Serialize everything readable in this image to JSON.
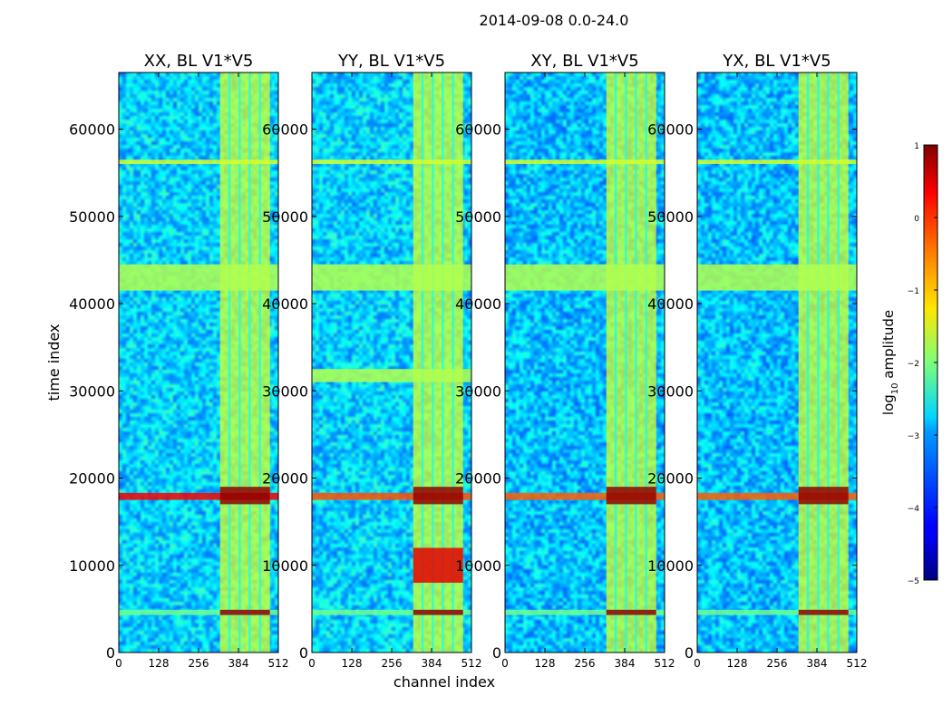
{
  "figure": {
    "suptitle": "2014-09-08 0.0-24.0",
    "shared_ylabel": "time index",
    "shared_xlabel": "channel index"
  },
  "chart_data": [
    {
      "type": "heatmap",
      "title": "XX, BL V1*V5",
      "xlim": [
        0,
        512
      ],
      "ylim": [
        0,
        66500
      ],
      "xticks": [
        0,
        128,
        256,
        384,
        512
      ],
      "yticks": [
        0,
        10000,
        20000,
        30000,
        40000,
        50000,
        60000
      ],
      "colormap": "jet",
      "value_label": "log10 amplitude",
      "background_level": -3.0,
      "high_columns": [
        [
          325,
          485
        ]
      ],
      "column_gaps": [
        355,
        388,
        420,
        453
      ],
      "rfi_rows": [
        {
          "y0": 4300,
          "y1": 4900,
          "x0": 0,
          "x1": 512,
          "level": -2.1
        },
        {
          "y0": 4300,
          "y1": 4900,
          "x0": 325,
          "x1": 485,
          "level": 0.9
        },
        {
          "y0": 17500,
          "y1": 18300,
          "x0": 0,
          "x1": 512,
          "level": 0.3
        },
        {
          "y0": 17000,
          "y1": 19000,
          "x0": 325,
          "x1": 485,
          "level": 0.9
        },
        {
          "y0": 41500,
          "y1": 44500,
          "x0": 0,
          "x1": 512,
          "level": -1.7
        },
        {
          "y0": 56000,
          "y1": 56500,
          "x0": 0,
          "x1": 512,
          "level": -1.5
        }
      ]
    },
    {
      "type": "heatmap",
      "title": "YY, BL V1*V5",
      "xlim": [
        0,
        512
      ],
      "ylim": [
        0,
        66500
      ],
      "xticks": [
        0,
        128,
        256,
        384,
        512
      ],
      "yticks": [
        0,
        10000,
        20000,
        30000,
        40000,
        50000,
        60000
      ],
      "colormap": "jet",
      "value_label": "log10 amplitude",
      "background_level": -3.0,
      "high_columns": [
        [
          325,
          485
        ]
      ],
      "column_gaps": [
        355,
        388,
        420,
        453
      ],
      "rfi_rows": [
        {
          "y0": 4300,
          "y1": 4900,
          "x0": 0,
          "x1": 512,
          "level": -2.1
        },
        {
          "y0": 4300,
          "y1": 4900,
          "x0": 325,
          "x1": 485,
          "level": 0.9
        },
        {
          "y0": 17500,
          "y1": 18300,
          "x0": 0,
          "x1": 512,
          "level": -0.2
        },
        {
          "y0": 17000,
          "y1": 19000,
          "x0": 325,
          "x1": 485,
          "level": 0.9
        },
        {
          "y0": 8000,
          "y1": 12000,
          "x0": 325,
          "x1": 485,
          "level": 0.4
        },
        {
          "y0": 31000,
          "y1": 32500,
          "x0": 0,
          "x1": 512,
          "level": -1.7
        },
        {
          "y0": 41500,
          "y1": 44500,
          "x0": 0,
          "x1": 512,
          "level": -1.7
        },
        {
          "y0": 56000,
          "y1": 56500,
          "x0": 0,
          "x1": 512,
          "level": -1.5
        }
      ]
    },
    {
      "type": "heatmap",
      "title": "XY, BL V1*V5",
      "xlim": [
        0,
        512
      ],
      "ylim": [
        0,
        66500
      ],
      "xticks": [
        0,
        128,
        256,
        384,
        512
      ],
      "yticks": [
        0,
        10000,
        20000,
        30000,
        40000,
        50000,
        60000
      ],
      "colormap": "jet",
      "value_label": "log10 amplitude",
      "background_level": -3.1,
      "high_columns": [
        [
          325,
          485
        ]
      ],
      "column_gaps": [
        355,
        388,
        420,
        453
      ],
      "rfi_rows": [
        {
          "y0": 4300,
          "y1": 4900,
          "x0": 0,
          "x1": 512,
          "level": -2.1
        },
        {
          "y0": 4300,
          "y1": 4900,
          "x0": 325,
          "x1": 485,
          "level": 0.9
        },
        {
          "y0": 17500,
          "y1": 18300,
          "x0": 0,
          "x1": 512,
          "level": -0.3
        },
        {
          "y0": 17000,
          "y1": 19000,
          "x0": 325,
          "x1": 485,
          "level": 0.9
        },
        {
          "y0": 41500,
          "y1": 44500,
          "x0": 0,
          "x1": 512,
          "level": -1.7
        },
        {
          "y0": 56000,
          "y1": 56500,
          "x0": 0,
          "x1": 512,
          "level": -1.5
        }
      ]
    },
    {
      "type": "heatmap",
      "title": "YX, BL V1*V5",
      "xlim": [
        0,
        512
      ],
      "ylim": [
        0,
        66500
      ],
      "xticks": [
        0,
        128,
        256,
        384,
        512
      ],
      "yticks": [
        0,
        10000,
        20000,
        30000,
        40000,
        50000,
        60000
      ],
      "colormap": "jet",
      "value_label": "log10 amplitude",
      "background_level": -3.1,
      "high_columns": [
        [
          325,
          485
        ]
      ],
      "column_gaps": [
        355,
        388,
        420,
        453
      ],
      "rfi_rows": [
        {
          "y0": 4300,
          "y1": 4900,
          "x0": 0,
          "x1": 512,
          "level": -2.1
        },
        {
          "y0": 4300,
          "y1": 4900,
          "x0": 325,
          "x1": 485,
          "level": 0.9
        },
        {
          "y0": 17500,
          "y1": 18300,
          "x0": 0,
          "x1": 512,
          "level": -0.3
        },
        {
          "y0": 17000,
          "y1": 19000,
          "x0": 325,
          "x1": 485,
          "level": 0.9
        },
        {
          "y0": 41500,
          "y1": 44500,
          "x0": 0,
          "x1": 512,
          "level": -1.7
        },
        {
          "y0": 56000,
          "y1": 56500,
          "x0": 0,
          "x1": 512,
          "level": -1.5
        }
      ]
    }
  ],
  "colorbar": {
    "label": "log",
    "label_sub": "10",
    "label_rest": " amplitude",
    "vmin": -5,
    "vmax": 1,
    "ticks": [
      1,
      0,
      -1,
      -2,
      -3,
      -4,
      -5
    ],
    "tick_labels": [
      "1",
      "0",
      "−1",
      "−2",
      "−3",
      "−4",
      "−5"
    ],
    "colormap": "jet"
  }
}
